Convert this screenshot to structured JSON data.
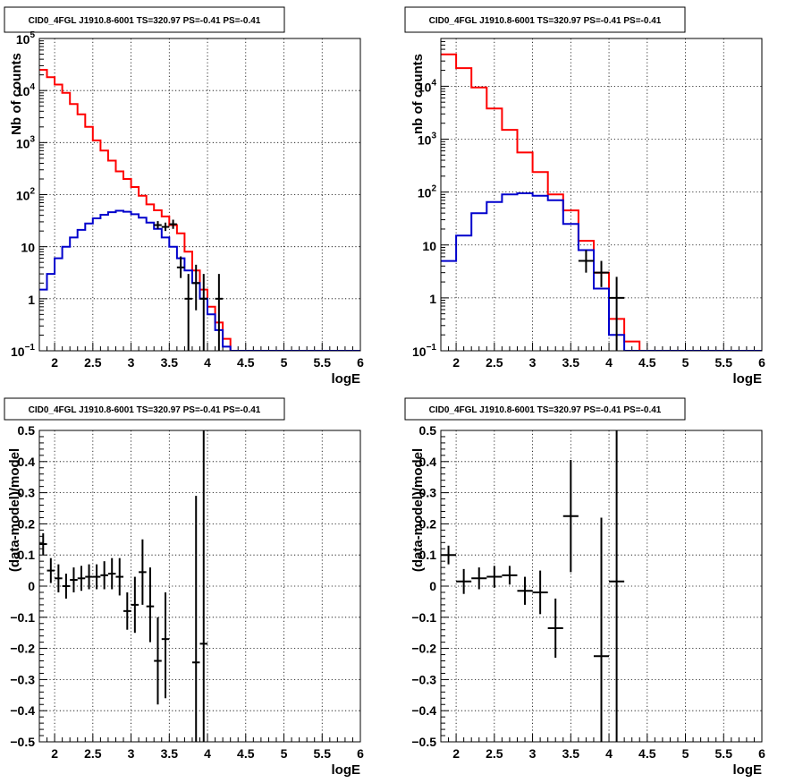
{
  "chart_data": [
    {
      "type": "line",
      "title": "CID0_4FGL J1910.8-6001 TS=320.97 PS=-0.41 PS=-0.41",
      "xlabel": "logE",
      "ylabel": "Nb of counts",
      "xlim": [
        1.8,
        6.0
      ],
      "ylim": [
        0.1,
        100000
      ],
      "yscale": "log",
      "grid": true,
      "xticks": [
        "2",
        "2.5",
        "3",
        "3.5",
        "4",
        "4.5",
        "5",
        "5.5",
        "6"
      ],
      "yticks": [
        {
          "v": 0.1,
          "b": "10",
          "e": "−1"
        },
        {
          "v": 1,
          "t": "1"
        },
        {
          "v": 10,
          "t": "10"
        },
        {
          "v": 100,
          "b": "10",
          "e": "2"
        },
        {
          "v": 1000,
          "b": "10",
          "e": "3"
        },
        {
          "v": 10000,
          "b": "10",
          "e": "4"
        },
        {
          "v": 100000,
          "b": "10",
          "e": "5"
        }
      ],
      "binwidth": 0.1,
      "series": [
        {
          "color": "#ff0000",
          "bins": [
            [
              1.8,
              25000
            ],
            [
              1.9,
              18000
            ],
            [
              2.0,
              13000
            ],
            [
              2.1,
              9000
            ],
            [
              2.2,
              5500
            ],
            [
              2.3,
              3500
            ],
            [
              2.4,
              2000
            ],
            [
              2.5,
              1100
            ],
            [
              2.6,
              700
            ],
            [
              2.7,
              450
            ],
            [
              2.8,
              280
            ],
            [
              2.9,
              200
            ],
            [
              3.0,
              140
            ],
            [
              3.1,
              95
            ],
            [
              3.2,
              65
            ],
            [
              3.3,
              50
            ],
            [
              3.4,
              38
            ],
            [
              3.5,
              26
            ],
            [
              3.6,
              18
            ],
            [
              3.7,
              8
            ],
            [
              3.8,
              3.5
            ],
            [
              3.9,
              1.5
            ],
            [
              4.0,
              0.7
            ],
            [
              4.1,
              0.35
            ],
            [
              4.2,
              0.17
            ],
            [
              4.3,
              0.1
            ],
            [
              4.4,
              0.1
            ],
            [
              4.5,
              0.1
            ],
            [
              4.6,
              0.1
            ],
            [
              4.7,
              0.1
            ],
            [
              4.8,
              0.1
            ],
            [
              4.9,
              0.1
            ],
            [
              5.0,
              0.1
            ],
            [
              5.1,
              0.1
            ],
            [
              5.2,
              0.1
            ],
            [
              5.3,
              0.1
            ],
            [
              5.4,
              0.1
            ],
            [
              5.5,
              0.1
            ],
            [
              5.6,
              0.1
            ],
            [
              5.7,
              0.1
            ],
            [
              5.8,
              0.1
            ],
            [
              5.9,
              0.1
            ]
          ]
        },
        {
          "color": "#0000cc",
          "bins": [
            [
              1.8,
              1.5
            ],
            [
              1.9,
              3
            ],
            [
              2.0,
              6
            ],
            [
              2.1,
              10
            ],
            [
              2.2,
              15
            ],
            [
              2.3,
              21
            ],
            [
              2.4,
              28
            ],
            [
              2.5,
              35
            ],
            [
              2.6,
              41
            ],
            [
              2.7,
              46
            ],
            [
              2.8,
              49
            ],
            [
              2.9,
              47
            ],
            [
              3.0,
              42
            ],
            [
              3.1,
              36
            ],
            [
              3.2,
              29
            ],
            [
              3.3,
              22
            ],
            [
              3.4,
              15
            ],
            [
              3.5,
              10
            ],
            [
              3.6,
              6
            ],
            [
              3.7,
              3.5
            ],
            [
              3.8,
              2
            ],
            [
              3.9,
              1
            ],
            [
              4.0,
              0.5
            ],
            [
              4.1,
              0.25
            ],
            [
              4.2,
              0.12
            ],
            [
              4.3,
              0.1
            ],
            [
              4.4,
              0.1
            ],
            [
              4.5,
              0.1
            ],
            [
              4.6,
              0.1
            ],
            [
              4.7,
              0.1
            ],
            [
              4.8,
              0.1
            ],
            [
              4.9,
              0.1
            ],
            [
              5.0,
              0.1
            ],
            [
              5.1,
              0.1
            ],
            [
              5.2,
              0.1
            ],
            [
              5.3,
              0.1
            ],
            [
              5.4,
              0.1
            ],
            [
              5.5,
              0.1
            ],
            [
              5.6,
              0.1
            ],
            [
              5.7,
              0.1
            ],
            [
              5.8,
              0.1
            ],
            [
              5.9,
              0.1
            ]
          ]
        }
      ],
      "points": [
        {
          "x": 3.35,
          "y": 26,
          "lo": 22,
          "hi": 31,
          "xe": 0.05
        },
        {
          "x": 3.45,
          "y": 24,
          "lo": 20,
          "hi": 29,
          "xe": 0.05
        },
        {
          "x": 3.55,
          "y": 27,
          "lo": 22,
          "hi": 33,
          "xe": 0.05
        },
        {
          "x": 3.65,
          "y": 4,
          "lo": 2.5,
          "hi": 6.5,
          "xe": 0.05
        },
        {
          "x": 3.75,
          "y": 1,
          "lo": 0.1,
          "hi": 3,
          "xe": 0.05
        },
        {
          "x": 3.85,
          "y": 2,
          "lo": 0.6,
          "hi": 4.5,
          "xe": 0.05
        },
        {
          "x": 3.95,
          "y": 1,
          "lo": 0.1,
          "hi": 3,
          "xe": 0.05
        },
        {
          "x": 4.15,
          "y": 1,
          "lo": 0.1,
          "hi": 3,
          "xe": 0.05
        }
      ]
    },
    {
      "type": "line",
      "title": "CID0_4FGL J1910.8-6001 TS=320.97 PS=-0.41 PS=-0.41",
      "xlabel": "logE",
      "ylabel": "nb of counts",
      "xlim": [
        1.8,
        6.0
      ],
      "ylim": [
        0.1,
        80000
      ],
      "yscale": "log",
      "grid": true,
      "xticks": [
        "2",
        "2.5",
        "3",
        "3.5",
        "4",
        "4.5",
        "5",
        "5.5",
        "6"
      ],
      "yticks": [
        {
          "v": 0.1,
          "b": "10",
          "e": "−1"
        },
        {
          "v": 1,
          "t": "1"
        },
        {
          "v": 10,
          "t": "10"
        },
        {
          "v": 100,
          "b": "10",
          "e": "2"
        },
        {
          "v": 1000,
          "b": "10",
          "e": "3"
        },
        {
          "v": 10000,
          "b": "10",
          "e": "4"
        }
      ],
      "binwidth": 0.2,
      "series": [
        {
          "color": "#ff0000",
          "bins": [
            [
              1.8,
              40000
            ],
            [
              2.0,
              22000
            ],
            [
              2.2,
              9500
            ],
            [
              2.4,
              3800
            ],
            [
              2.6,
              1500
            ],
            [
              2.8,
              560
            ],
            [
              3.0,
              240
            ],
            [
              3.2,
              90
            ],
            [
              3.4,
              45
            ],
            [
              3.6,
              12
            ],
            [
              3.8,
              3
            ],
            [
              4.0,
              0.4
            ],
            [
              4.2,
              0.15
            ],
            [
              4.4,
              0.1
            ],
            [
              4.6,
              0.1
            ],
            [
              4.8,
              0.1
            ],
            [
              5.0,
              0.1
            ],
            [
              5.2,
              0.1
            ],
            [
              5.4,
              0.1
            ],
            [
              5.6,
              0.1
            ],
            [
              5.8,
              0.1
            ]
          ]
        },
        {
          "color": "#0000cc",
          "bins": [
            [
              1.8,
              5
            ],
            [
              2.0,
              15
            ],
            [
              2.2,
              40
            ],
            [
              2.4,
              65
            ],
            [
              2.6,
              90
            ],
            [
              2.8,
              95
            ],
            [
              3.0,
              85
            ],
            [
              3.2,
              70
            ],
            [
              3.4,
              25
            ],
            [
              3.6,
              8
            ],
            [
              3.8,
              1.5
            ],
            [
              4.0,
              0.2
            ],
            [
              4.2,
              0.1
            ],
            [
              4.4,
              0.1
            ],
            [
              4.6,
              0.1
            ],
            [
              4.8,
              0.1
            ],
            [
              5.0,
              0.1
            ],
            [
              5.2,
              0.1
            ],
            [
              5.4,
              0.1
            ],
            [
              5.6,
              0.1
            ],
            [
              5.8,
              0.1
            ]
          ]
        }
      ],
      "points": [
        {
          "x": 3.7,
          "y": 5,
          "lo": 3,
          "hi": 8,
          "xe": 0.1
        },
        {
          "x": 3.9,
          "y": 3,
          "lo": 1.6,
          "hi": 5,
          "xe": 0.1
        },
        {
          "x": 4.1,
          "y": 1,
          "lo": 0.1,
          "hi": 2.5,
          "xe": 0.1
        }
      ]
    },
    {
      "type": "scatter",
      "title": "CID0_4FGL J1910.8-6001 TS=320.97 PS=-0.41 PS=-0.41",
      "xlabel": "logE",
      "ylabel": "(data-model)/model",
      "xlim": [
        1.8,
        6.0
      ],
      "ylim": [
        -0.5,
        0.5
      ],
      "grid": true,
      "xticks": [
        "2",
        "2.5",
        "3",
        "3.5",
        "4",
        "4.5",
        "5",
        "5.5",
        "6"
      ],
      "yticks": [
        "−0.5",
        "−0.4",
        "−0.3",
        "−0.2",
        "−0.1",
        "0",
        "0.1",
        "0.2",
        "0.3",
        "0.4",
        "0.5"
      ],
      "points": [
        {
          "x": 1.85,
          "y": 0.135,
          "lo": 0.1,
          "hi": 0.17,
          "xe": 0.05
        },
        {
          "x": 1.95,
          "y": 0.05,
          "lo": 0.01,
          "hi": 0.09,
          "xe": 0.05
        },
        {
          "x": 2.05,
          "y": 0.025,
          "lo": -0.02,
          "hi": 0.07,
          "xe": 0.05
        },
        {
          "x": 2.15,
          "y": 0.0,
          "lo": -0.04,
          "hi": 0.04,
          "xe": 0.05
        },
        {
          "x": 2.25,
          "y": 0.02,
          "lo": -0.02,
          "hi": 0.06,
          "xe": 0.05
        },
        {
          "x": 2.35,
          "y": 0.025,
          "lo": -0.015,
          "hi": 0.065,
          "xe": 0.05
        },
        {
          "x": 2.45,
          "y": 0.03,
          "lo": -0.01,
          "hi": 0.07,
          "xe": 0.05
        },
        {
          "x": 2.55,
          "y": 0.03,
          "lo": -0.01,
          "hi": 0.07,
          "xe": 0.05
        },
        {
          "x": 2.65,
          "y": 0.035,
          "lo": -0.01,
          "hi": 0.08,
          "xe": 0.05
        },
        {
          "x": 2.75,
          "y": 0.04,
          "lo": -0.01,
          "hi": 0.09,
          "xe": 0.05
        },
        {
          "x": 2.85,
          "y": 0.03,
          "lo": -0.03,
          "hi": 0.09,
          "xe": 0.05
        },
        {
          "x": 2.95,
          "y": -0.08,
          "lo": -0.14,
          "hi": -0.02,
          "xe": 0.05
        },
        {
          "x": 3.05,
          "y": -0.06,
          "lo": -0.15,
          "hi": 0.03,
          "xe": 0.05
        },
        {
          "x": 3.15,
          "y": 0.045,
          "lo": -0.06,
          "hi": 0.15,
          "xe": 0.05
        },
        {
          "x": 3.25,
          "y": -0.065,
          "lo": -0.18,
          "hi": 0.06,
          "xe": 0.05
        },
        {
          "x": 3.35,
          "y": -0.24,
          "lo": -0.38,
          "hi": -0.1,
          "xe": 0.05
        },
        {
          "x": 3.45,
          "y": -0.17,
          "lo": -0.36,
          "hi": -0.02,
          "xe": 0.05
        },
        {
          "x": 3.85,
          "y": -0.245,
          "lo": -0.5,
          "hi": 0.29,
          "xe": 0.05
        },
        {
          "x": 3.95,
          "y": -0.185,
          "lo": -0.5,
          "hi": 0.5,
          "xe": 0.05
        }
      ]
    },
    {
      "type": "scatter",
      "title": "CID0_4FGL J1910.8-6001 TS=320.97 PS=-0.41 PS=-0.41",
      "xlabel": "logE",
      "ylabel": "(data-model)/model",
      "xlim": [
        1.8,
        6.0
      ],
      "ylim": [
        -0.5,
        0.5
      ],
      "grid": true,
      "xticks": [
        "2",
        "2.5",
        "3",
        "3.5",
        "4",
        "4.5",
        "5",
        "5.5",
        "6"
      ],
      "yticks": [
        "−0.5",
        "−0.4",
        "−0.3",
        "−0.2",
        "−0.1",
        "0",
        "0.1",
        "0.2",
        "0.3",
        "0.4",
        "0.5"
      ],
      "points": [
        {
          "x": 1.9,
          "y": 0.1,
          "lo": 0.07,
          "hi": 0.13,
          "xe": 0.1
        },
        {
          "x": 2.1,
          "y": 0.015,
          "lo": -0.025,
          "hi": 0.055,
          "xe": 0.1
        },
        {
          "x": 2.3,
          "y": 0.025,
          "lo": -0.01,
          "hi": 0.06,
          "xe": 0.1
        },
        {
          "x": 2.5,
          "y": 0.03,
          "lo": -0.005,
          "hi": 0.065,
          "xe": 0.1
        },
        {
          "x": 2.7,
          "y": 0.035,
          "lo": 0.005,
          "hi": 0.065,
          "xe": 0.1
        },
        {
          "x": 2.9,
          "y": -0.015,
          "lo": -0.06,
          "hi": 0.03,
          "xe": 0.1
        },
        {
          "x": 3.1,
          "y": -0.02,
          "lo": -0.09,
          "hi": 0.05,
          "xe": 0.1
        },
        {
          "x": 3.3,
          "y": -0.135,
          "lo": -0.23,
          "hi": -0.04,
          "xe": 0.1
        },
        {
          "x": 3.5,
          "y": 0.225,
          "lo": 0.045,
          "hi": 0.405,
          "xe": 0.1
        },
        {
          "x": 3.9,
          "y": -0.225,
          "lo": -0.5,
          "hi": 0.22,
          "xe": 0.1
        },
        {
          "x": 4.1,
          "y": 0.015,
          "lo": -0.5,
          "hi": 0.5,
          "xe": 0.1
        }
      ]
    }
  ]
}
